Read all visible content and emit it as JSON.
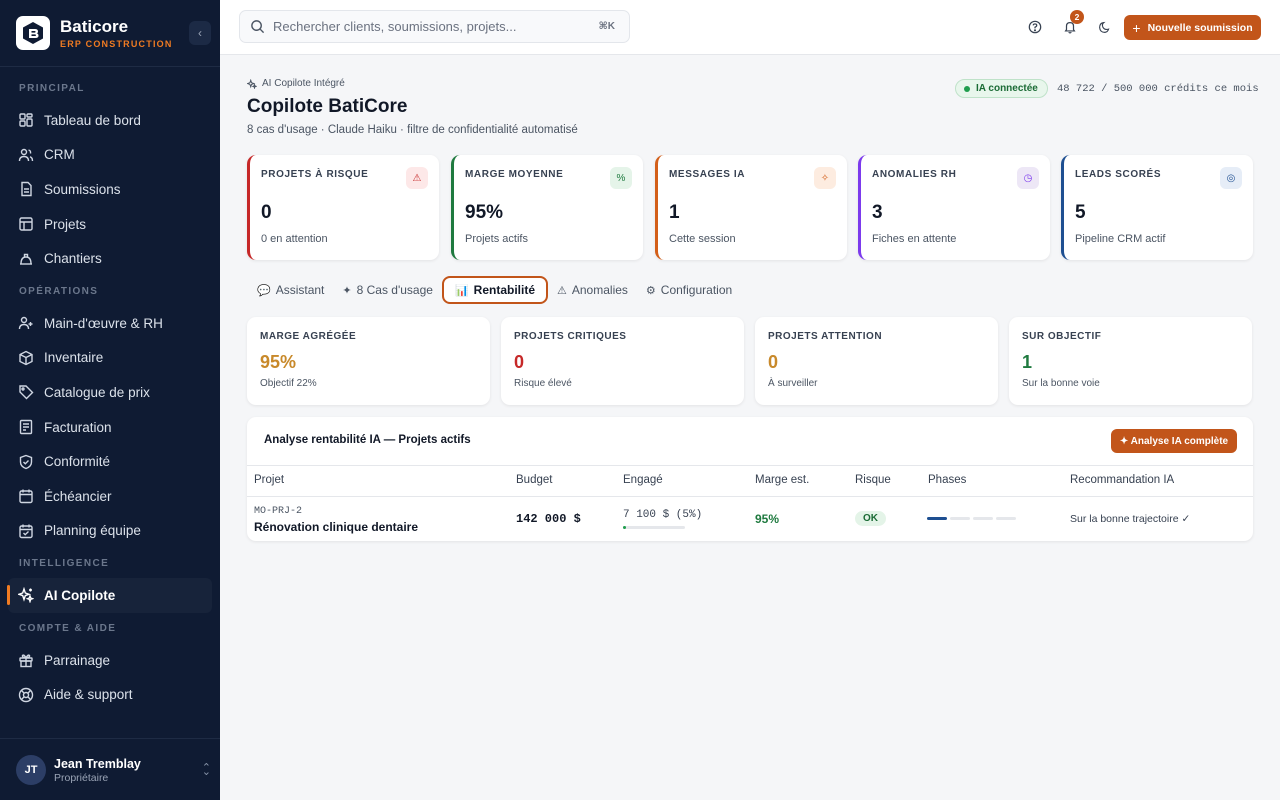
{
  "brand": {
    "name": "Baticore",
    "subtitle": "ERP CONSTRUCTION"
  },
  "sidebar": {
    "sections": [
      {
        "title": "PRINCIPAL",
        "items": [
          {
            "label": "Tableau de bord",
            "icon": "dashboard-icon"
          },
          {
            "label": "CRM",
            "icon": "users-icon"
          },
          {
            "label": "Soumissions",
            "icon": "document-icon"
          },
          {
            "label": "Projets",
            "icon": "folder-icon"
          },
          {
            "label": "Chantiers",
            "icon": "crane-icon"
          }
        ]
      },
      {
        "title": "OPÉRATIONS",
        "items": [
          {
            "label": "Main-d'œuvre & RH",
            "icon": "user-group-icon"
          },
          {
            "label": "Inventaire",
            "icon": "box-icon"
          },
          {
            "label": "Catalogue de prix",
            "icon": "tag-icon"
          },
          {
            "label": "Facturation",
            "icon": "invoice-icon"
          },
          {
            "label": "Conformité",
            "icon": "shield-icon"
          },
          {
            "label": "Échéancier",
            "icon": "calendar-icon"
          },
          {
            "label": "Planning équipe",
            "icon": "calendar-check-icon"
          }
        ]
      },
      {
        "title": "INTELLIGENCE",
        "items": [
          {
            "label": "AI Copilote",
            "icon": "sparkles-icon",
            "active": true
          }
        ]
      },
      {
        "title": "COMPTE & AIDE",
        "items": [
          {
            "label": "Parrainage",
            "icon": "gift-icon"
          },
          {
            "label": "Aide & support",
            "icon": "help-icon"
          }
        ]
      }
    ]
  },
  "user": {
    "initials": "JT",
    "name": "Jean Tremblay",
    "role": "Propriétaire"
  },
  "topbar": {
    "search_placeholder": "Rechercher clients, soumissions, projets...",
    "shortcut": "⌘K",
    "notification_count": "2",
    "new_button": "Nouvelle soumission"
  },
  "header": {
    "breadcrumb": "AI Copilote Intégré",
    "title": "Copilote BatiCore",
    "subtitle": "8 cas d'usage · Claude Haiku · filtre de confidentialité automatisé",
    "status": "IA connectée",
    "credits": "48 722 / 500 000 crédits ce mois"
  },
  "kpis": [
    {
      "label": "PROJETS À RISQUE",
      "value": "0",
      "sub": "0 en attention",
      "icon": "warning-icon",
      "color": "#c62828",
      "icon_bg": "#fde8e8",
      "glyph": "⚠"
    },
    {
      "label": "MARGE MOYENNE",
      "value": "95%",
      "sub": "Projets actifs",
      "icon": "percent-icon",
      "color": "#1f7a3f",
      "icon_bg": "#e5f4e9",
      "glyph": "%"
    },
    {
      "label": "MESSAGES IA",
      "value": "1",
      "sub": "Cette session",
      "icon": "sparkles-icon",
      "color": "#d35f1a",
      "icon_bg": "#fdece0",
      "glyph": "✧"
    },
    {
      "label": "ANOMALIES RH",
      "value": "3",
      "sub": "Fiches en attente",
      "icon": "clock-icon",
      "color": "#7c3aed",
      "icon_bg": "#ede7f6",
      "glyph": "◷"
    },
    {
      "label": "LEADS SCORÉS",
      "value": "5",
      "sub": "Pipeline CRM actif",
      "icon": "target-icon",
      "color": "#1e4f91",
      "icon_bg": "#e6edf7",
      "glyph": "◎"
    }
  ],
  "tabs": [
    {
      "label": "Assistant",
      "icon": "chat-icon",
      "glyph": "💬"
    },
    {
      "label": "8 Cas d'usage",
      "icon": "sparkle-icon",
      "glyph": "✦"
    },
    {
      "label": "Rentabilité",
      "icon": "chart-icon",
      "glyph": "📊",
      "active": true
    },
    {
      "label": "Anomalies",
      "icon": "warning-icon",
      "glyph": "⚠"
    },
    {
      "label": "Configuration",
      "icon": "gear-icon",
      "glyph": "⚙"
    }
  ],
  "stats": [
    {
      "label": "MARGE AGRÉGÉE",
      "value": "95%",
      "sub": "Objectif 22%",
      "color": "#c8892a"
    },
    {
      "label": "PROJETS CRITIQUES",
      "value": "0",
      "sub": "Risque élevé",
      "color": "#c62828"
    },
    {
      "label": "PROJETS ATTENTION",
      "value": "0",
      "sub": "À surveiller",
      "color": "#c8892a"
    },
    {
      "label": "SUR OBJECTIF",
      "value": "1",
      "sub": "Sur la bonne voie",
      "color": "#1f7a3f"
    }
  ],
  "analysis": {
    "title": "Analyse rentabilité IA — Projets actifs",
    "button": "✦ Analyse IA complète",
    "columns": [
      "Projet",
      "Budget",
      "Engagé",
      "Marge est.",
      "Risque",
      "Phases",
      "Recommandation IA"
    ],
    "rows": [
      {
        "code": "MO-PRJ-2",
        "name": "Rénovation clinique dentaire",
        "budget": "142 000 $",
        "engaged": "7 100 $ (5%)",
        "engaged_fraction": 0.05,
        "margin": "95%",
        "risk": "OK",
        "phases_done": 1,
        "phases_total": 4,
        "recommendation": "Sur la bonne trajectoire ✓"
      }
    ]
  }
}
